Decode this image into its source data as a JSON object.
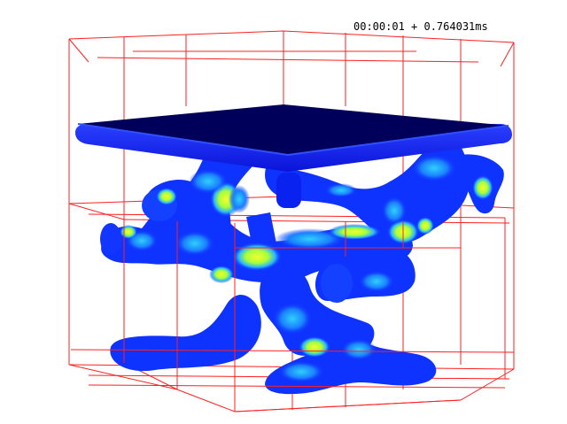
{
  "viewer": {
    "timestamp": "00:00:01 + 0.764031ms"
  },
  "colors": {
    "background": "#ffffff",
    "grid_lines": "#ff0000",
    "plate_top": "#00005a",
    "plate_side": "#0a1eff",
    "bone_base": "#0f33ff",
    "stress_mid": "#28b4ff",
    "stress_high": "#a8ff3a",
    "stress_peak": "#f4ff30"
  }
}
